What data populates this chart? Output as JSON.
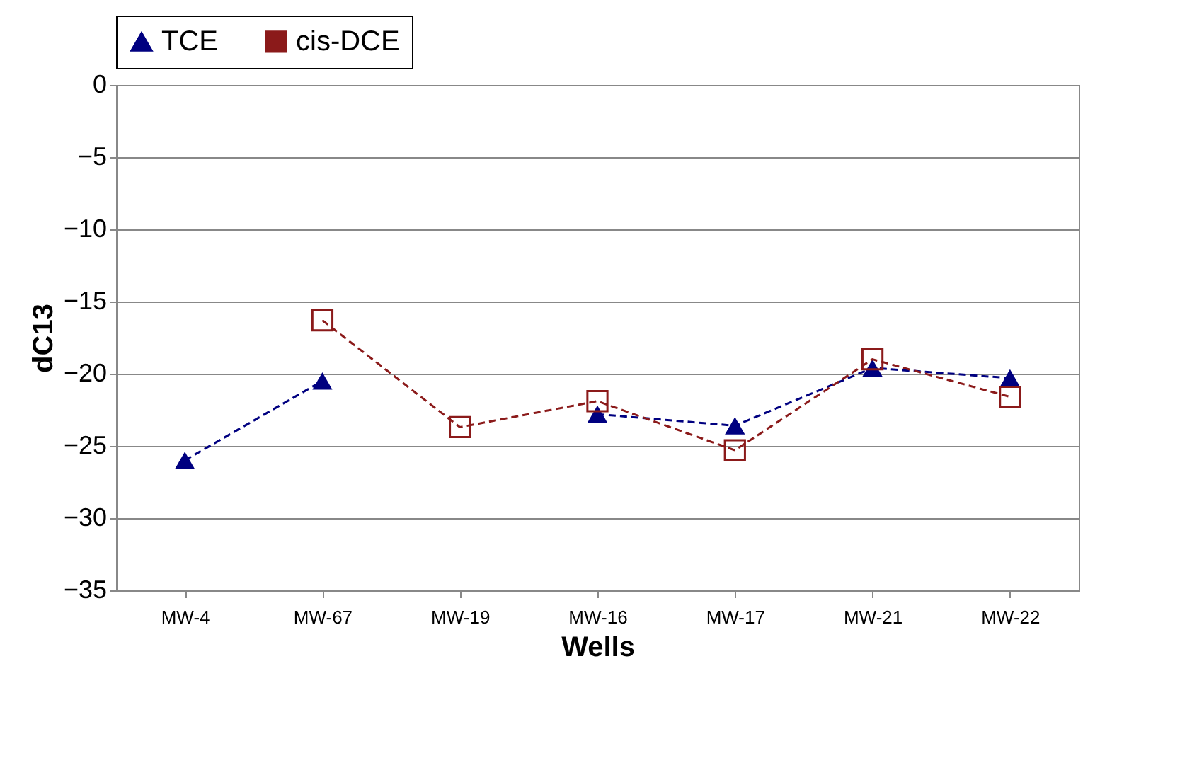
{
  "chart_data": {
    "type": "line",
    "xlabel": "Wells",
    "ylabel": "dC13",
    "categories": [
      "MW-4",
      "MW-67",
      "MW-19",
      "MW-16",
      "MW-17",
      "MW-21",
      "MW-22"
    ],
    "series": [
      {
        "name": "TCE",
        "color": "#000080",
        "marker": "triangle",
        "line_style": "dashed",
        "values": [
          -26,
          -20.5,
          null,
          -22.8,
          -23.6,
          -19.6,
          -20.3
        ]
      },
      {
        "name": "cis-DCE",
        "color": "#8b1a1a",
        "marker": "square",
        "line_style": "dashed",
        "values": [
          null,
          -16.3,
          -23.7,
          -21.9,
          -25.3,
          -19,
          -21.6
        ]
      }
    ],
    "ylim": [
      -35,
      0
    ],
    "yticks": [
      -35,
      -30,
      -25,
      -20,
      -15,
      -10,
      -5,
      0
    ],
    "grid": "y",
    "legend": "top"
  }
}
